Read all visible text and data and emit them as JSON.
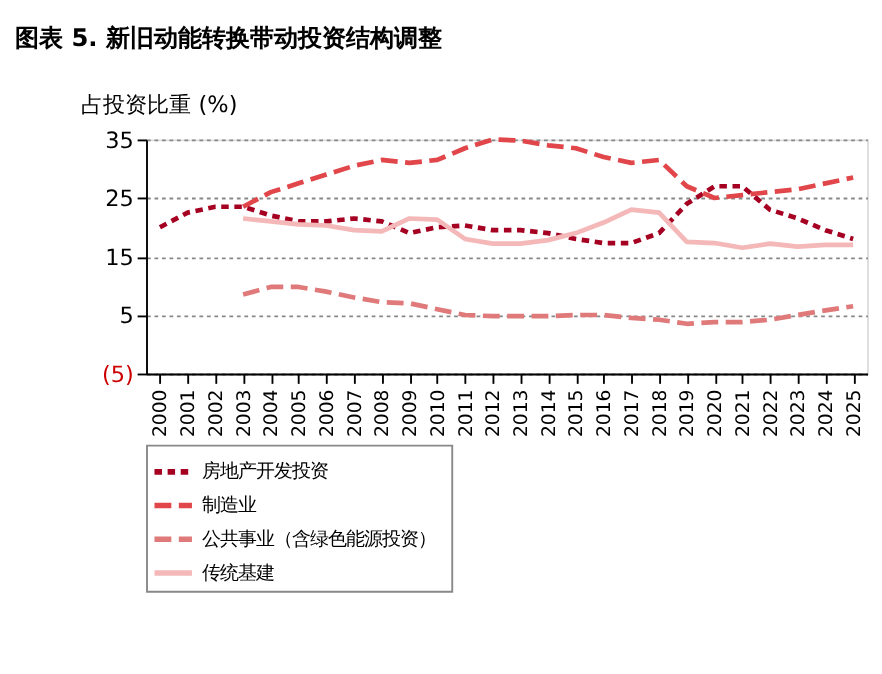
{
  "chart_data": {
    "type": "line",
    "title": "图表 5. 新旧动能转换带动投资结构调整",
    "ylabel": "占投资比重 (%)",
    "categories": [
      "2000",
      "2001",
      "2002",
      "2003",
      "2004",
      "2005",
      "2006",
      "2007",
      "2008",
      "2009",
      "2010",
      "2011",
      "2012",
      "2013",
      "2014",
      "2015",
      "2016",
      "2017",
      "2018",
      "2019",
      "2020",
      "2021",
      "2022",
      "2023",
      "2024",
      "2025"
    ],
    "series": [
      {
        "name": "房地产开发投资",
        "color": "#a50021",
        "line_style": "dotted",
        "values": [
          20,
          22.5,
          23.5,
          23.5,
          22,
          21,
          21,
          21.5,
          21,
          19,
          20,
          20.3,
          19.5,
          19.5,
          19,
          18,
          17.3,
          17.3,
          19,
          24,
          27,
          27,
          23,
          21.5,
          19.5,
          18
        ]
      },
      {
        "name": "制造业",
        "color": "#e0464a",
        "line_style": "dashed",
        "values": [
          null,
          null,
          null,
          23.5,
          26,
          27.5,
          29,
          30.5,
          31.5,
          31,
          31.5,
          33.5,
          35,
          34.8,
          34,
          33.5,
          32,
          31,
          31.5,
          27,
          25,
          25.5,
          26,
          26.5,
          27.5,
          28.5
        ]
      },
      {
        "name": "公共事业（含绿色能源投资）",
        "color": "#e07a7a",
        "line_style": "dashed",
        "values": [
          null,
          null,
          null,
          8.5,
          9.8,
          9.8,
          9,
          8,
          7.2,
          7,
          6,
          5,
          4.8,
          4.8,
          4.8,
          5,
          5,
          4.5,
          4.2,
          3.5,
          3.8,
          3.8,
          4.2,
          5,
          5.8,
          6.5
        ]
      },
      {
        "name": "传统基建",
        "color": "#f4b8b8",
        "line_style": "solid",
        "values": [
          null,
          null,
          null,
          21.5,
          21,
          20.5,
          20.3,
          19.5,
          19.3,
          21.5,
          21.3,
          18,
          17.2,
          17.2,
          17.8,
          19,
          20.8,
          23,
          22.5,
          17.5,
          17.3,
          16.5,
          17.2,
          16.7,
          17,
          17
        ]
      }
    ],
    "ylim": [
      -5,
      35
    ],
    "yticks": [
      {
        "value": -5,
        "label": "(5)"
      },
      5,
      15,
      25,
      35
    ],
    "grid": "y",
    "legend": "bottom",
    "marker": "none"
  }
}
